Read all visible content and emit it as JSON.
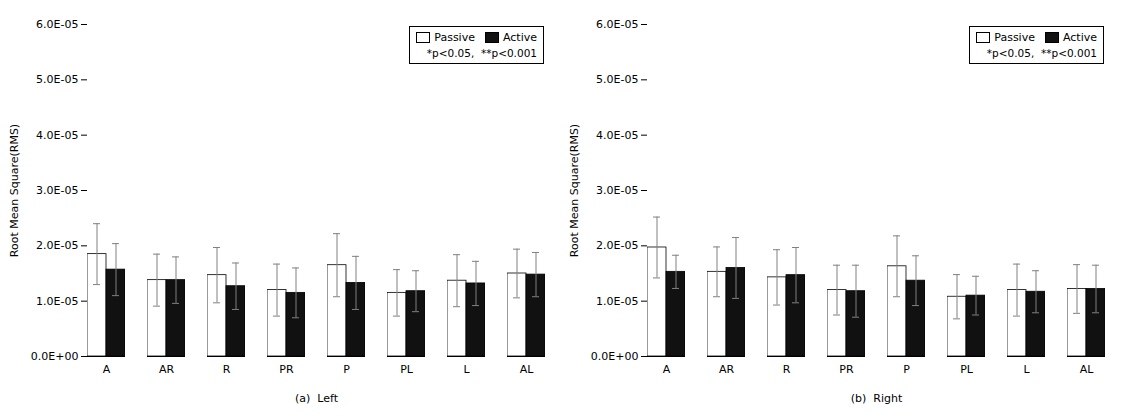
{
  "chart_data": [
    {
      "type": "bar",
      "xlabel": "(a)  Left",
      "ylabel": "Root Mean Square(RMS)",
      "categories": [
        "A",
        "AR",
        "R",
        "PR",
        "P",
        "PL",
        "L",
        "AL"
      ],
      "series": [
        {
          "name": "Passive",
          "color": "#ffffff",
          "values": [
            1.85e-05,
            1.38e-05,
            1.47e-05,
            1.2e-05,
            1.65e-05,
            1.15e-05,
            1.37e-05,
            1.5e-05
          ],
          "errors": [
            5.5e-06,
            4.7e-06,
            5e-06,
            4.7e-06,
            5.7e-06,
            4.2e-06,
            4.7e-06,
            4.4e-06
          ]
        },
        {
          "name": "Active",
          "color": "#111111",
          "values": [
            1.57e-05,
            1.38e-05,
            1.27e-05,
            1.15e-05,
            1.33e-05,
            1.18e-05,
            1.32e-05,
            1.48e-05
          ],
          "errors": [
            4.7e-06,
            4.2e-06,
            4.2e-06,
            4.5e-06,
            4.8e-06,
            3.7e-06,
            4e-06,
            4e-06
          ]
        }
      ],
      "ylim": [
        0,
        6e-05
      ],
      "yticks": [
        {
          "value": 0.0,
          "label": "0.0E+00"
        },
        {
          "value": 1e-05,
          "label": "1.0E-05"
        },
        {
          "value": 2e-05,
          "label": "2.0E-05"
        },
        {
          "value": 3e-05,
          "label": "3.0E-05"
        },
        {
          "value": 4e-05,
          "label": "4.0E-05"
        },
        {
          "value": 5e-05,
          "label": "5.0E-05"
        },
        {
          "value": 6e-05,
          "label": "6.0E-05"
        }
      ],
      "legend": "upper right",
      "annotations": [
        "*p<0.05,  **p<0.001"
      ]
    },
    {
      "type": "bar",
      "xlabel": "(b)  Right",
      "ylabel": "Root Mean Square(RMS)",
      "categories": [
        "A",
        "AR",
        "R",
        "PR",
        "P",
        "PL",
        "L",
        "AL"
      ],
      "series": [
        {
          "name": "Passive",
          "color": "#ffffff",
          "values": [
            1.97e-05,
            1.53e-05,
            1.43e-05,
            1.2e-05,
            1.63e-05,
            1.08e-05,
            1.2e-05,
            1.22e-05
          ],
          "errors": [
            5.5e-06,
            4.5e-06,
            5e-06,
            4.5e-06,
            5.5e-06,
            4e-06,
            4.7e-06,
            4.4e-06
          ]
        },
        {
          "name": "Active",
          "color": "#111111",
          "values": [
            1.53e-05,
            1.6e-05,
            1.47e-05,
            1.18e-05,
            1.37e-05,
            1.1e-05,
            1.17e-05,
            1.22e-05
          ],
          "errors": [
            3e-06,
            5.5e-06,
            5e-06,
            4.7e-06,
            4.5e-06,
            3.5e-06,
            3.8e-06,
            4.3e-06
          ]
        }
      ],
      "ylim": [
        0,
        6e-05
      ],
      "yticks": [
        {
          "value": 0.0,
          "label": "0.0E+00"
        },
        {
          "value": 1e-05,
          "label": "1.0E-05"
        },
        {
          "value": 2e-05,
          "label": "2.0E-05"
        },
        {
          "value": 3e-05,
          "label": "3.0E-05"
        },
        {
          "value": 4e-05,
          "label": "4.0E-05"
        },
        {
          "value": 5e-05,
          "label": "5.0E-05"
        },
        {
          "value": 6e-05,
          "label": "6.0E-05"
        }
      ],
      "legend": "upper right",
      "annotations": [
        "*p<0.05,  **p<0.001"
      ]
    }
  ]
}
